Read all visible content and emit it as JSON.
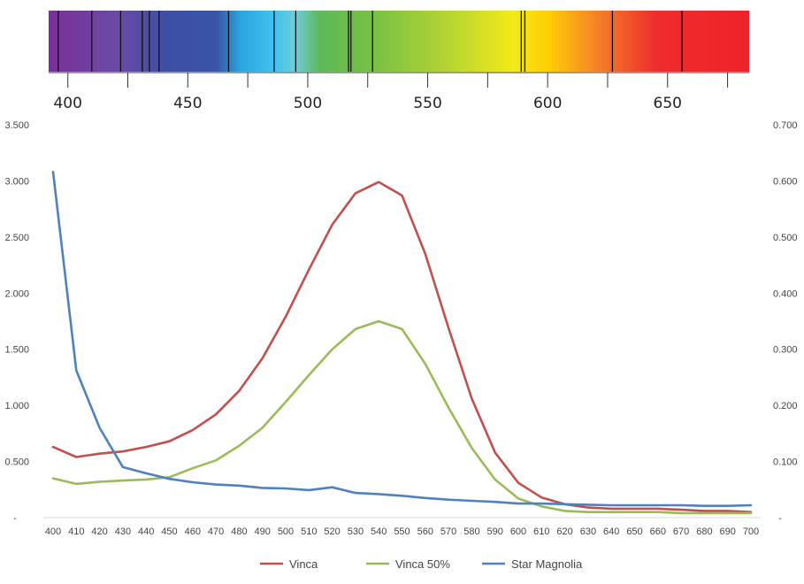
{
  "spectrum": {
    "tick_labels": [
      "400",
      "450",
      "500",
      "550",
      "600",
      "650"
    ],
    "tick_values": [
      400,
      450,
      500,
      550,
      600,
      650
    ],
    "range": [
      392,
      684
    ],
    "minor_ticks": [
      425,
      475,
      525,
      575,
      625,
      675
    ],
    "absorption_lines": [
      396,
      410,
      422,
      431,
      434,
      438,
      467,
      486,
      495,
      517,
      518,
      527,
      589,
      590.5,
      627,
      656
    ],
    "color_stops": [
      {
        "nm": 392,
        "color": "#7a2f96"
      },
      {
        "nm": 420,
        "color": "#6a4aa6"
      },
      {
        "nm": 440,
        "color": "#3e4fa3"
      },
      {
        "nm": 462,
        "color": "#3a54a8"
      },
      {
        "nm": 472,
        "color": "#2aa6e0"
      },
      {
        "nm": 486,
        "color": "#3fc2ee"
      },
      {
        "nm": 495,
        "color": "#6fcbd8"
      },
      {
        "nm": 505,
        "color": "#5fb85a"
      },
      {
        "nm": 530,
        "color": "#7cc242"
      },
      {
        "nm": 560,
        "color": "#b9d532"
      },
      {
        "nm": 585,
        "color": "#f2ea1a"
      },
      {
        "nm": 600,
        "color": "#ffcf05"
      },
      {
        "nm": 622,
        "color": "#f47c2a"
      },
      {
        "nm": 645,
        "color": "#ee2d2d"
      },
      {
        "nm": 684,
        "color": "#ee2229"
      }
    ]
  },
  "chart_data": {
    "type": "line",
    "x": [
      400,
      410,
      420,
      430,
      440,
      450,
      460,
      470,
      480,
      490,
      500,
      510,
      520,
      530,
      540,
      550,
      560,
      570,
      580,
      590,
      600,
      610,
      620,
      630,
      640,
      650,
      660,
      670,
      680,
      690,
      700
    ],
    "xlim": [
      400,
      700
    ],
    "y_left": {
      "ylim": [
        0,
        3.5
      ],
      "tick_values": [
        0,
        0.5,
        1.0,
        1.5,
        2.0,
        2.5,
        3.0,
        3.5
      ],
      "tick_labels": [
        "-",
        "0.500",
        "1.000",
        "1.500",
        "2.000",
        "2.500",
        "3.000",
        "3.500"
      ]
    },
    "y_right": {
      "ylim": [
        0,
        0.7
      ],
      "tick_values": [
        0,
        0.1,
        0.2,
        0.3,
        0.4,
        0.5,
        0.6,
        0.7
      ],
      "tick_labels": [
        "-",
        "0.100",
        "0.200",
        "0.300",
        "0.400",
        "0.500",
        "0.600",
        "0.700"
      ]
    },
    "grid": false,
    "legend_position": "bottom",
    "series": [
      {
        "name": "Vinca",
        "axis": "left",
        "color": "#c0504d",
        "values": [
          0.63,
          0.54,
          0.57,
          0.59,
          0.63,
          0.68,
          0.78,
          0.92,
          1.13,
          1.42,
          1.79,
          2.21,
          2.61,
          2.89,
          2.99,
          2.87,
          2.35,
          1.69,
          1.06,
          0.58,
          0.31,
          0.18,
          0.12,
          0.09,
          0.08,
          0.08,
          0.08,
          0.07,
          0.06,
          0.06,
          0.05
        ]
      },
      {
        "name": "Vinca 50%",
        "axis": "left",
        "color": "#9bbb59",
        "values": [
          0.35,
          0.3,
          0.32,
          0.33,
          0.34,
          0.36,
          0.44,
          0.51,
          0.64,
          0.8,
          1.03,
          1.27,
          1.5,
          1.68,
          1.75,
          1.68,
          1.37,
          0.98,
          0.62,
          0.34,
          0.17,
          0.1,
          0.06,
          0.05,
          0.05,
          0.05,
          0.05,
          0.04,
          0.04,
          0.04,
          0.04
        ]
      },
      {
        "name": "Star Magnolia",
        "axis": "right",
        "color": "#4f81bd",
        "values": [
          0.616,
          0.262,
          0.16,
          0.09,
          0.079,
          0.069,
          0.063,
          0.059,
          0.057,
          0.053,
          0.052,
          0.049,
          0.054,
          0.044,
          0.042,
          0.039,
          0.035,
          0.032,
          0.03,
          0.028,
          0.025,
          0.025,
          0.024,
          0.023,
          0.022,
          0.022,
          0.022,
          0.022,
          0.021,
          0.021,
          0.022
        ]
      }
    ]
  }
}
